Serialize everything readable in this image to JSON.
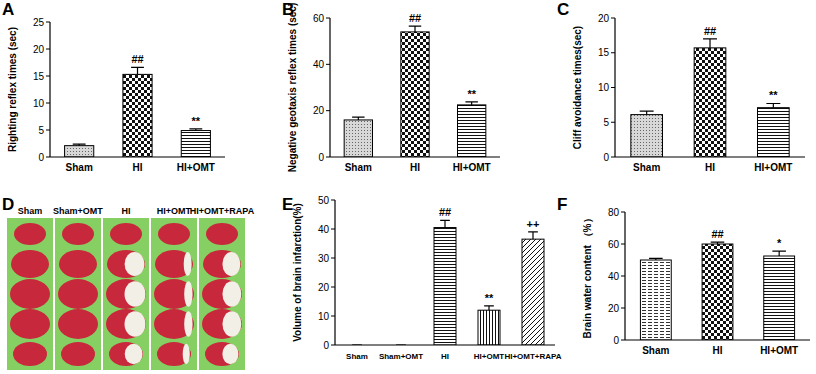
{
  "chart_data": [
    {
      "type": "bar",
      "panel_label": "A",
      "ylabel": "Righting reflex times (sec)",
      "categories": [
        "Sham",
        "HI",
        "HI+OMT"
      ],
      "values": [
        2.1,
        15.3,
        4.9
      ],
      "errors": [
        0.3,
        1.3,
        0.3
      ],
      "annotations": [
        null,
        "##",
        "**"
      ],
      "color": "#000000",
      "ylim": [
        0,
        25
      ],
      "yticks": [
        0,
        5,
        10,
        15,
        20,
        25
      ]
    },
    {
      "type": "bar",
      "panel_label": "B",
      "ylabel": "Negative geotaxis reflex times (sec)",
      "categories": [
        "Sham",
        "HI",
        "HI+OMT"
      ],
      "values": [
        16,
        54,
        22.5
      ],
      "errors": [
        1.2,
        2.5,
        1.3
      ],
      "annotations": [
        null,
        "##",
        "**"
      ],
      "color": "#000000",
      "ylim": [
        0,
        60
      ],
      "yticks": [
        0,
        20,
        40,
        60
      ]
    },
    {
      "type": "bar",
      "panel_label": "C",
      "ylabel": "Cliff avoidance times(sec)",
      "categories": [
        "Sham",
        "HI",
        "HI+OMT"
      ],
      "values": [
        6.1,
        15.7,
        7.1
      ],
      "errors": [
        0.5,
        1.3,
        0.6
      ],
      "annotations": [
        null,
        "##",
        "**"
      ],
      "color": "#000000",
      "ylim": [
        0,
        20
      ],
      "yticks": [
        0,
        5,
        10,
        15,
        20
      ]
    },
    {
      "type": "bar",
      "panel_label": "E",
      "ylabel": "Volume of brain infarction(%)",
      "categories": [
        "Sham",
        "Sham+OMT",
        "HI",
        "HI+OMT",
        "HI+OMT+RAPA"
      ],
      "values": [
        0,
        0,
        40.5,
        12,
        36.5
      ],
      "errors": [
        0,
        0,
        2.5,
        1.5,
        2.5
      ],
      "annotations": [
        null,
        null,
        "##",
        "**",
        "++"
      ],
      "color": "#000000",
      "ylim": [
        0,
        50
      ],
      "yticks": [
        0,
        10,
        20,
        30,
        40,
        50
      ]
    },
    {
      "type": "bar",
      "panel_label": "F",
      "ylabel": "Brain water content （%）",
      "categories": [
        "Sham",
        "HI",
        "HI+OMT"
      ],
      "values": [
        50,
        60,
        52.5
      ],
      "errors": [
        1,
        1.2,
        3
      ],
      "annotations": [
        null,
        "##",
        "*"
      ],
      "color": "#000000",
      "ylim": [
        0,
        80
      ],
      "yticks": [
        0,
        20,
        40,
        60,
        80
      ]
    }
  ],
  "image_panel": {
    "panel_label": "D",
    "columns": [
      "Sham",
      "Sham+OMT",
      "HI",
      "HI+OMT",
      "HI+OMT+RAPA"
    ]
  }
}
